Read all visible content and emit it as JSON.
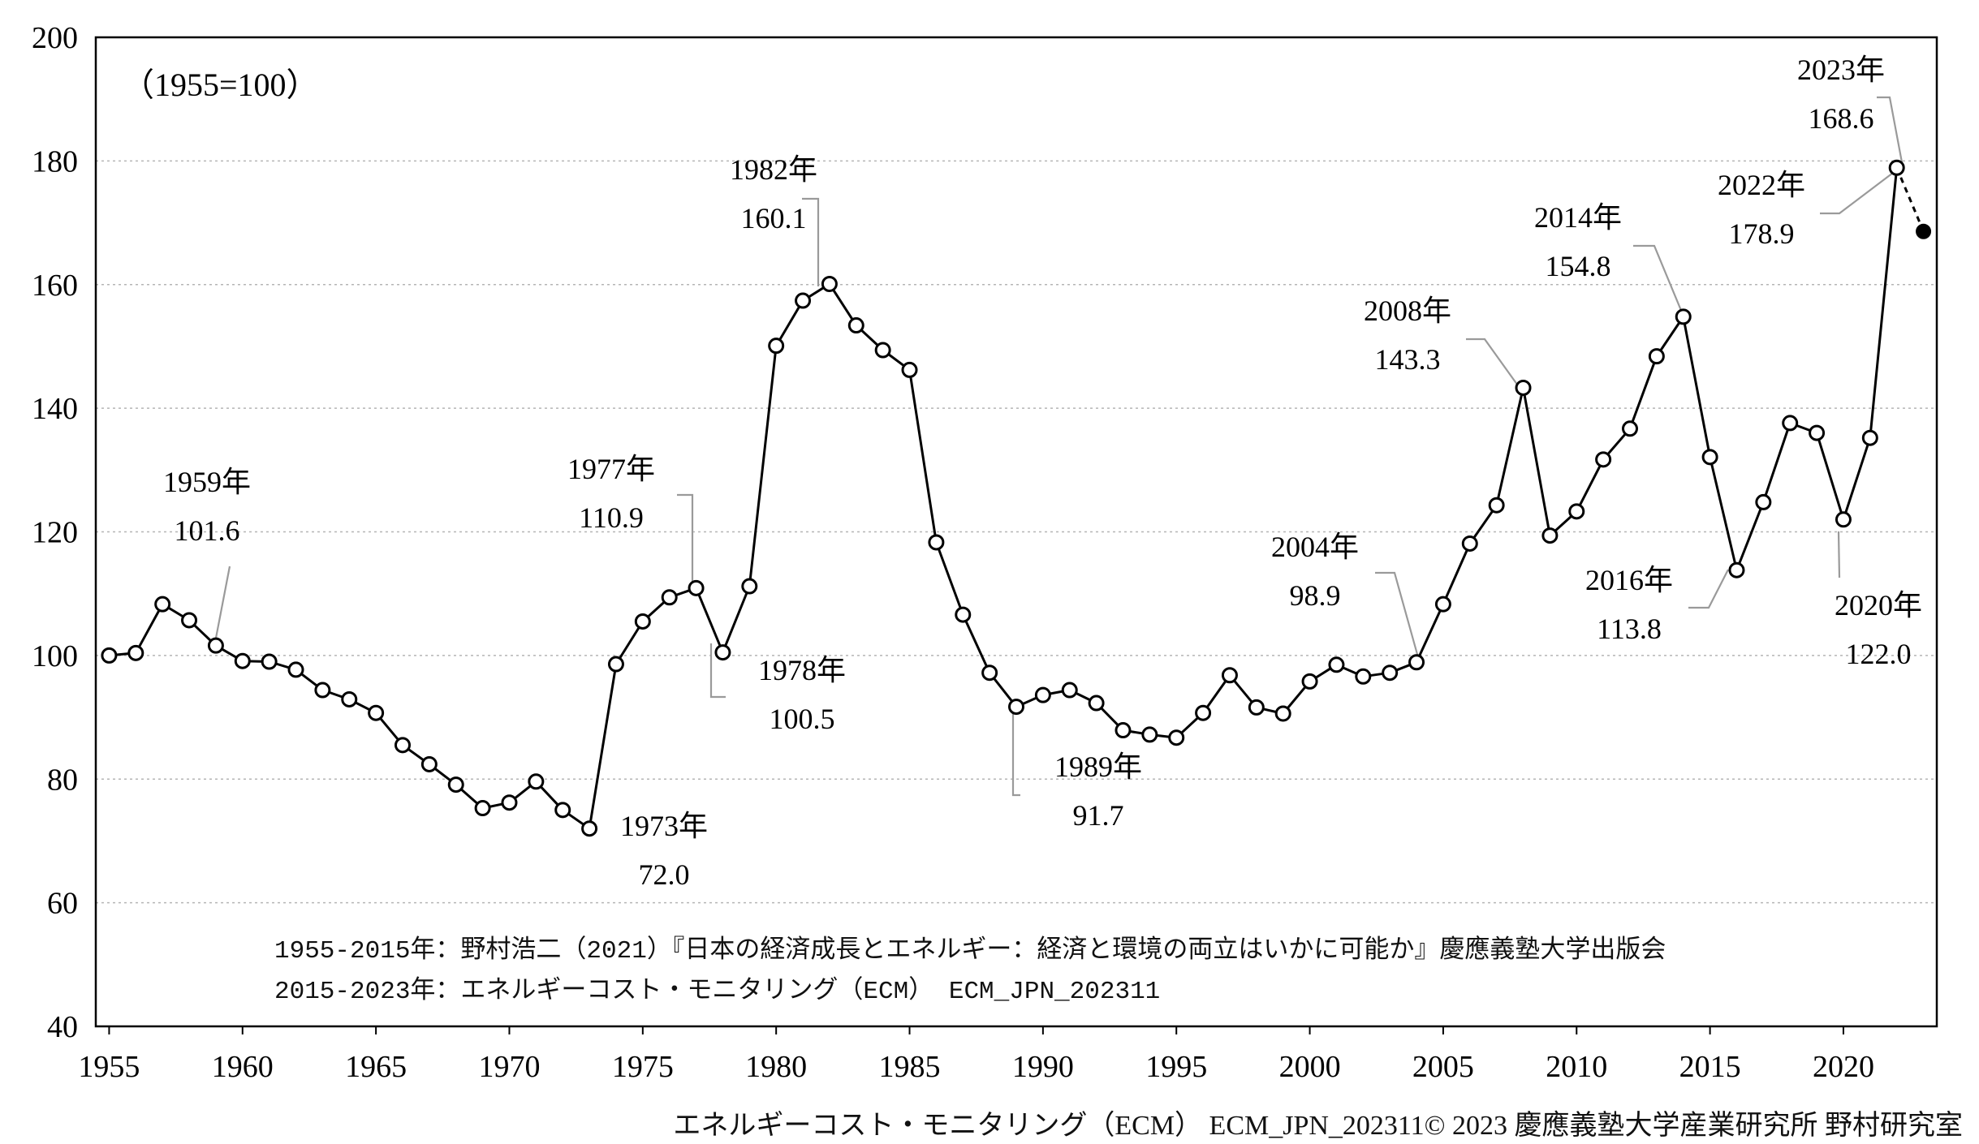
{
  "chart_data": {
    "type": "line",
    "title": "",
    "xlabel": "",
    "ylabel": "",
    "index_note": "（1955=100）",
    "xlim": [
      1954.5,
      2023.5
    ],
    "ylim": [
      40,
      200
    ],
    "x_ticks": [
      1955,
      1960,
      1965,
      1970,
      1975,
      1980,
      1985,
      1990,
      1995,
      2000,
      2005,
      2010,
      2015,
      2020
    ],
    "x_tick_labels": [
      "1955",
      "1960",
      "1965",
      "1970",
      "1975",
      "1980",
      "1985",
      "1990",
      "1995",
      "2000",
      "2005",
      "2010",
      "2015",
      "2020"
    ],
    "y_ticks": [
      40,
      60,
      80,
      100,
      120,
      140,
      160,
      180,
      200
    ],
    "y_tick_labels": [
      "40",
      "60",
      "80",
      "100",
      "120",
      "140",
      "160",
      "180",
      "200"
    ],
    "grid": "horizontal-dotted",
    "series": [
      {
        "x": [
          1955,
          1956,
          1957,
          1958,
          1959,
          1960,
          1961,
          1962,
          1963,
          1964,
          1965,
          1966,
          1967,
          1968,
          1969,
          1970,
          1971,
          1972,
          1973,
          1974,
          1975,
          1976,
          1977,
          1978,
          1979,
          1980,
          1981,
          1982,
          1983,
          1984,
          1985,
          1986,
          1987,
          1988,
          1989,
          1990,
          1991,
          1992,
          1993,
          1994,
          1995,
          1996,
          1997,
          1998,
          1999,
          2000,
          2001,
          2002,
          2003,
          2004,
          2005,
          2006,
          2007,
          2008,
          2009,
          2010,
          2011,
          2012,
          2013,
          2014,
          2015,
          2016,
          2017,
          2018,
          2019,
          2020,
          2021,
          2022
        ],
        "values": [
          100.0,
          100.4,
          108.3,
          105.7,
          101.6,
          99.1,
          99.0,
          97.7,
          94.4,
          92.9,
          90.7,
          85.5,
          82.4,
          79.1,
          75.3,
          76.2,
          79.6,
          75.0,
          72.0,
          98.6,
          105.5,
          109.4,
          110.9,
          100.5,
          111.2,
          150.1,
          157.4,
          160.1,
          153.4,
          149.4,
          146.2,
          118.3,
          106.6,
          97.2,
          91.7,
          93.6,
          94.4,
          92.3,
          87.9,
          87.2,
          86.7,
          90.7,
          96.8,
          91.6,
          90.6,
          95.8,
          98.5,
          96.6,
          97.2,
          98.9,
          108.3,
          118.1,
          124.3,
          143.3,
          119.4,
          123.3,
          131.7,
          136.7,
          148.4,
          154.8,
          132.1,
          113.8,
          124.8,
          137.6,
          136.0,
          122.0,
          135.2,
          178.9
        ],
        "color": "#000000",
        "marker": "open-circle"
      },
      {
        "x": [
          2022,
          2023
        ],
        "values": [
          178.9,
          168.6
        ],
        "color": "#000000",
        "linestyle": "dashed",
        "marker_last": "filled-circle"
      }
    ],
    "annotations": [
      {
        "year_label": "1959年",
        "value_label": "101.6"
      },
      {
        "year_label": "1973年",
        "value_label": "72.0"
      },
      {
        "year_label": "1977年",
        "value_label": "110.9"
      },
      {
        "year_label": "1978年",
        "value_label": "100.5"
      },
      {
        "year_label": "1982年",
        "value_label": "160.1"
      },
      {
        "year_label": "1989年",
        "value_label": "91.7"
      },
      {
        "year_label": "2004年",
        "value_label": "98.9"
      },
      {
        "year_label": "2008年",
        "value_label": "143.3"
      },
      {
        "year_label": "2014年",
        "value_label": "154.8"
      },
      {
        "year_label": "2016年",
        "value_label": "113.8"
      },
      {
        "year_label": "2020年",
        "value_label": "122.0"
      },
      {
        "year_label": "2022年",
        "value_label": "178.9"
      },
      {
        "year_label": "2023年",
        "value_label": "168.6"
      }
    ],
    "source_lines": [
      "1955-2015年：野村浩二（2021）『日本の経済成長とエネルギー：経済と環境の両立はいかに可能か』慶應義塾大学出版会",
      "2015-2023年：エネルギーコスト・モニタリング（ECM） ECM_JPN_202311"
    ],
    "footer": "エネルギーコスト・モニタリング（ECM） ECM_JPN_202311© 2023 慶應義塾大学産業研究所 野村研究室"
  }
}
